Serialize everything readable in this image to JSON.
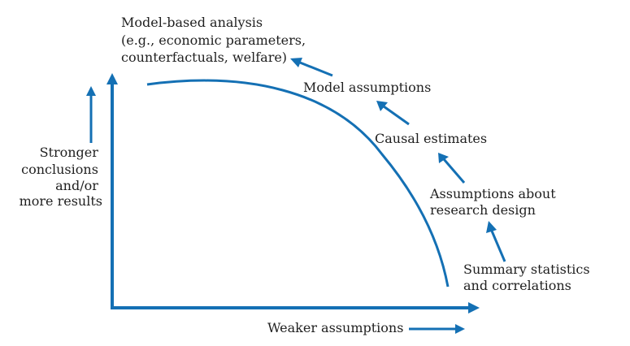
{
  "diagram": {
    "top_label": [
      "Model-based analysis",
      "(e.g., economic parameters,",
      "counterfactuals, welfare)"
    ],
    "y_label": [
      "Stronger",
      "conclusions",
      "and/or",
      "more results"
    ],
    "x_label": "Weaker assumptions",
    "steps": {
      "model_assumptions": "Model assumptions",
      "causal_estimates": "Causal estimates",
      "design": [
        "Assumptions about",
        "research design"
      ],
      "summary": [
        "Summary statistics",
        "and correlations"
      ]
    },
    "colors": {
      "accent": "#1470b4",
      "text": "#1f1f1f"
    }
  }
}
